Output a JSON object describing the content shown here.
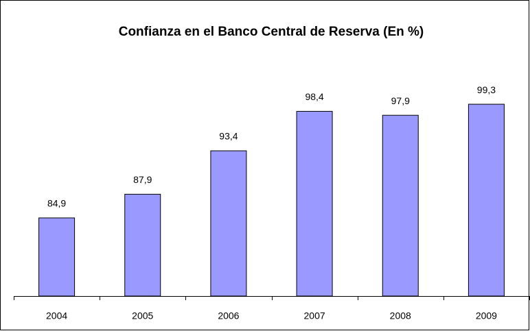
{
  "chart_data": {
    "type": "bar",
    "title": "Confianza en el Banco Central de Reserva (En %)",
    "categories": [
      "2004",
      "2005",
      "2006",
      "2007",
      "2008",
      "2009"
    ],
    "values": [
      84.9,
      87.9,
      93.4,
      98.4,
      97.9,
      99.3
    ],
    "value_labels": [
      "84,9",
      "87,9",
      "93,4",
      "98,4",
      "97,9",
      "99,3"
    ],
    "color": "#9999ff",
    "ylim": [
      75,
      100
    ]
  }
}
